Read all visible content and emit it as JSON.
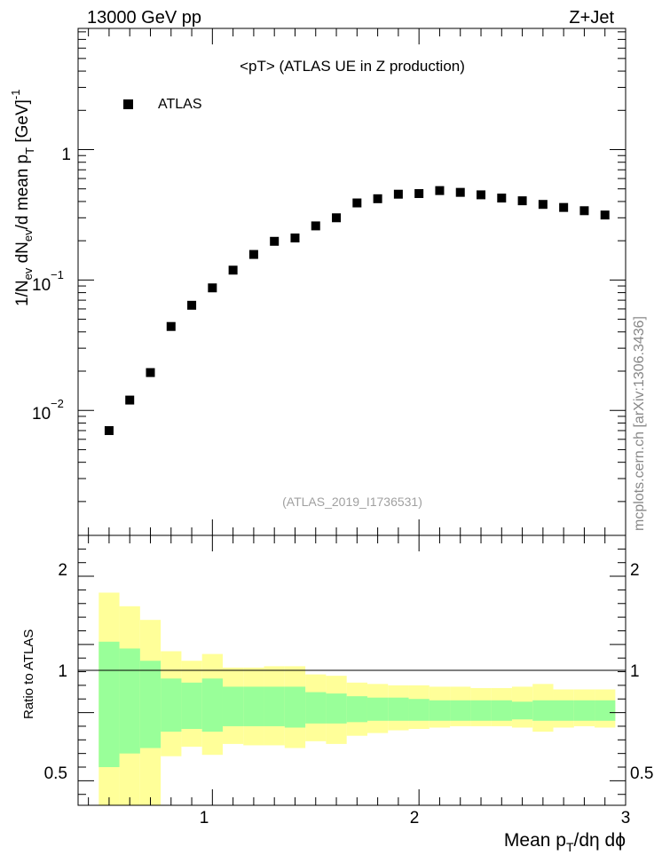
{
  "header": {
    "left": "13000 GeV pp",
    "right": "Z+Jet"
  },
  "main_panel": {
    "title": "<pT> (ATLAS UE in Z production)",
    "ylabel_main": "1/N",
    "ylabel_sub1": "ev",
    "ylabel_mid": " dN",
    "ylabel_sub2": "ev",
    "ylabel_tail1": "/d mean p",
    "ylabel_sub3": "T",
    "ylabel_tail2": " [GeV]",
    "ylabel_sup": "-1",
    "legend_label": "ATLAS",
    "analysis_id": "(ATLAS_2019_I1736531)",
    "side_credit": "mcplots.cern.ch [arXiv:1306.3436]",
    "y_ticks": [
      {
        "base": "1",
        "exp": ""
      },
      {
        "base": "10",
        "exp": "−1"
      },
      {
        "base": "10",
        "exp": "−2"
      }
    ]
  },
  "ratio_panel": {
    "ylabel": "Ratio to ATLAS",
    "y_ticks": [
      "2",
      "1.5",
      "1",
      "0.5"
    ]
  },
  "x_axis": {
    "ticks": [
      "1",
      "2",
      "3"
    ],
    "label_main": "Mean p",
    "label_sub": "T",
    "label_tail": "/dη dϕ"
  },
  "colors": {
    "marker": "#000000",
    "band_inner": "#99ff99",
    "band_outer": "#ffff99",
    "credit_text": "#888888",
    "id_text": "#a0a0a0"
  },
  "chart_data": [
    {
      "type": "scatter",
      "title": "<pT> (ATLAS UE in Z production)",
      "xlabel": "Mean pT/dη dϕ",
      "ylabel": "1/Nev dNev/d mean pT [GeV]^-1",
      "xlim": [
        0.35,
        3.0
      ],
      "ylim": [
        0.0011,
        8.5
      ],
      "yscale": "log",
      "legend": "top-left",
      "series": [
        {
          "name": "ATLAS",
          "x": [
            0.5,
            0.6,
            0.7,
            0.8,
            0.9,
            1.0,
            1.1,
            1.2,
            1.3,
            1.4,
            1.5,
            1.6,
            1.7,
            1.8,
            1.9,
            2.0,
            2.1,
            2.2,
            2.3,
            2.4,
            2.5,
            2.6,
            2.7,
            2.8,
            2.9
          ],
          "values": [
            0.007,
            0.012,
            0.0195,
            0.044,
            0.064,
            0.087,
            0.119,
            0.157,
            0.198,
            0.21,
            0.26,
            0.3,
            0.39,
            0.42,
            0.455,
            0.46,
            0.485,
            0.47,
            0.45,
            0.425,
            0.405,
            0.38,
            0.36,
            0.34,
            0.315
          ]
        }
      ]
    },
    {
      "type": "area",
      "ylabel": "Ratio to ATLAS",
      "xlim": [
        0.35,
        3.0
      ],
      "ylim": [
        0.32,
        2.3
      ],
      "reference_line": 1.0,
      "bins": [
        {
          "x0": 0.45,
          "x1": 0.55,
          "inner": [
            0.6,
            1.52
          ],
          "outer": [
            0.3,
            1.88
          ]
        },
        {
          "x0": 0.55,
          "x1": 0.65,
          "inner": [
            0.7,
            1.47
          ],
          "outer": [
            0.3,
            1.78
          ]
        },
        {
          "x0": 0.65,
          "x1": 0.75,
          "inner": [
            0.74,
            1.38
          ],
          "outer": [
            0.3,
            1.68
          ]
        },
        {
          "x0": 0.75,
          "x1": 0.85,
          "inner": [
            0.86,
            1.25
          ],
          "outer": [
            0.68,
            1.45
          ]
        },
        {
          "x0": 0.85,
          "x1": 0.95,
          "inner": [
            0.88,
            1.22
          ],
          "outer": [
            0.75,
            1.38
          ]
        },
        {
          "x0": 0.95,
          "x1": 1.05,
          "inner": [
            0.86,
            1.25
          ],
          "outer": [
            0.69,
            1.43
          ]
        },
        {
          "x0": 1.05,
          "x1": 1.15,
          "inner": [
            0.9,
            1.19
          ],
          "outer": [
            0.77,
            1.33
          ]
        },
        {
          "x0": 1.15,
          "x1": 1.25,
          "inner": [
            0.9,
            1.19
          ],
          "outer": [
            0.76,
            1.33
          ]
        },
        {
          "x0": 1.25,
          "x1": 1.35,
          "inner": [
            0.9,
            1.19
          ],
          "outer": [
            0.76,
            1.34
          ]
        },
        {
          "x0": 1.35,
          "x1": 1.45,
          "inner": [
            0.89,
            1.19
          ],
          "outer": [
            0.74,
            1.34
          ]
        },
        {
          "x0": 1.45,
          "x1": 1.55,
          "inner": [
            0.92,
            1.15
          ],
          "outer": [
            0.79,
            1.28
          ]
        },
        {
          "x0": 1.55,
          "x1": 1.65,
          "inner": [
            0.92,
            1.14
          ],
          "outer": [
            0.77,
            1.27
          ]
        },
        {
          "x0": 1.65,
          "x1": 1.75,
          "inner": [
            0.93,
            1.12
          ],
          "outer": [
            0.83,
            1.22
          ]
        },
        {
          "x0": 1.75,
          "x1": 1.85,
          "inner": [
            0.94,
            1.11
          ],
          "outer": [
            0.85,
            1.21
          ]
        },
        {
          "x0": 1.85,
          "x1": 1.95,
          "inner": [
            0.94,
            1.11
          ],
          "outer": [
            0.87,
            1.2
          ]
        },
        {
          "x0": 1.95,
          "x1": 2.05,
          "inner": [
            0.94,
            1.1
          ],
          "outer": [
            0.88,
            1.2
          ]
        },
        {
          "x0": 2.05,
          "x1": 2.15,
          "inner": [
            0.94,
            1.09
          ],
          "outer": [
            0.89,
            1.19
          ]
        },
        {
          "x0": 2.15,
          "x1": 2.25,
          "inner": [
            0.94,
            1.09
          ],
          "outer": [
            0.9,
            1.19
          ]
        },
        {
          "x0": 2.25,
          "x1": 2.35,
          "inner": [
            0.94,
            1.09
          ],
          "outer": [
            0.9,
            1.18
          ]
        },
        {
          "x0": 2.35,
          "x1": 2.45,
          "inner": [
            0.94,
            1.09
          ],
          "outer": [
            0.9,
            1.18
          ]
        },
        {
          "x0": 2.45,
          "x1": 2.55,
          "inner": [
            0.95,
            1.08
          ],
          "outer": [
            0.89,
            1.19
          ]
        },
        {
          "x0": 2.55,
          "x1": 2.65,
          "inner": [
            0.94,
            1.09
          ],
          "outer": [
            0.86,
            1.21
          ]
        },
        {
          "x0": 2.65,
          "x1": 2.75,
          "inner": [
            0.94,
            1.09
          ],
          "outer": [
            0.89,
            1.17
          ]
        },
        {
          "x0": 2.75,
          "x1": 2.85,
          "inner": [
            0.94,
            1.09
          ],
          "outer": [
            0.9,
            1.17
          ]
        },
        {
          "x0": 2.85,
          "x1": 2.95,
          "inner": [
            0.94,
            1.09
          ],
          "outer": [
            0.89,
            1.17
          ]
        }
      ]
    }
  ]
}
